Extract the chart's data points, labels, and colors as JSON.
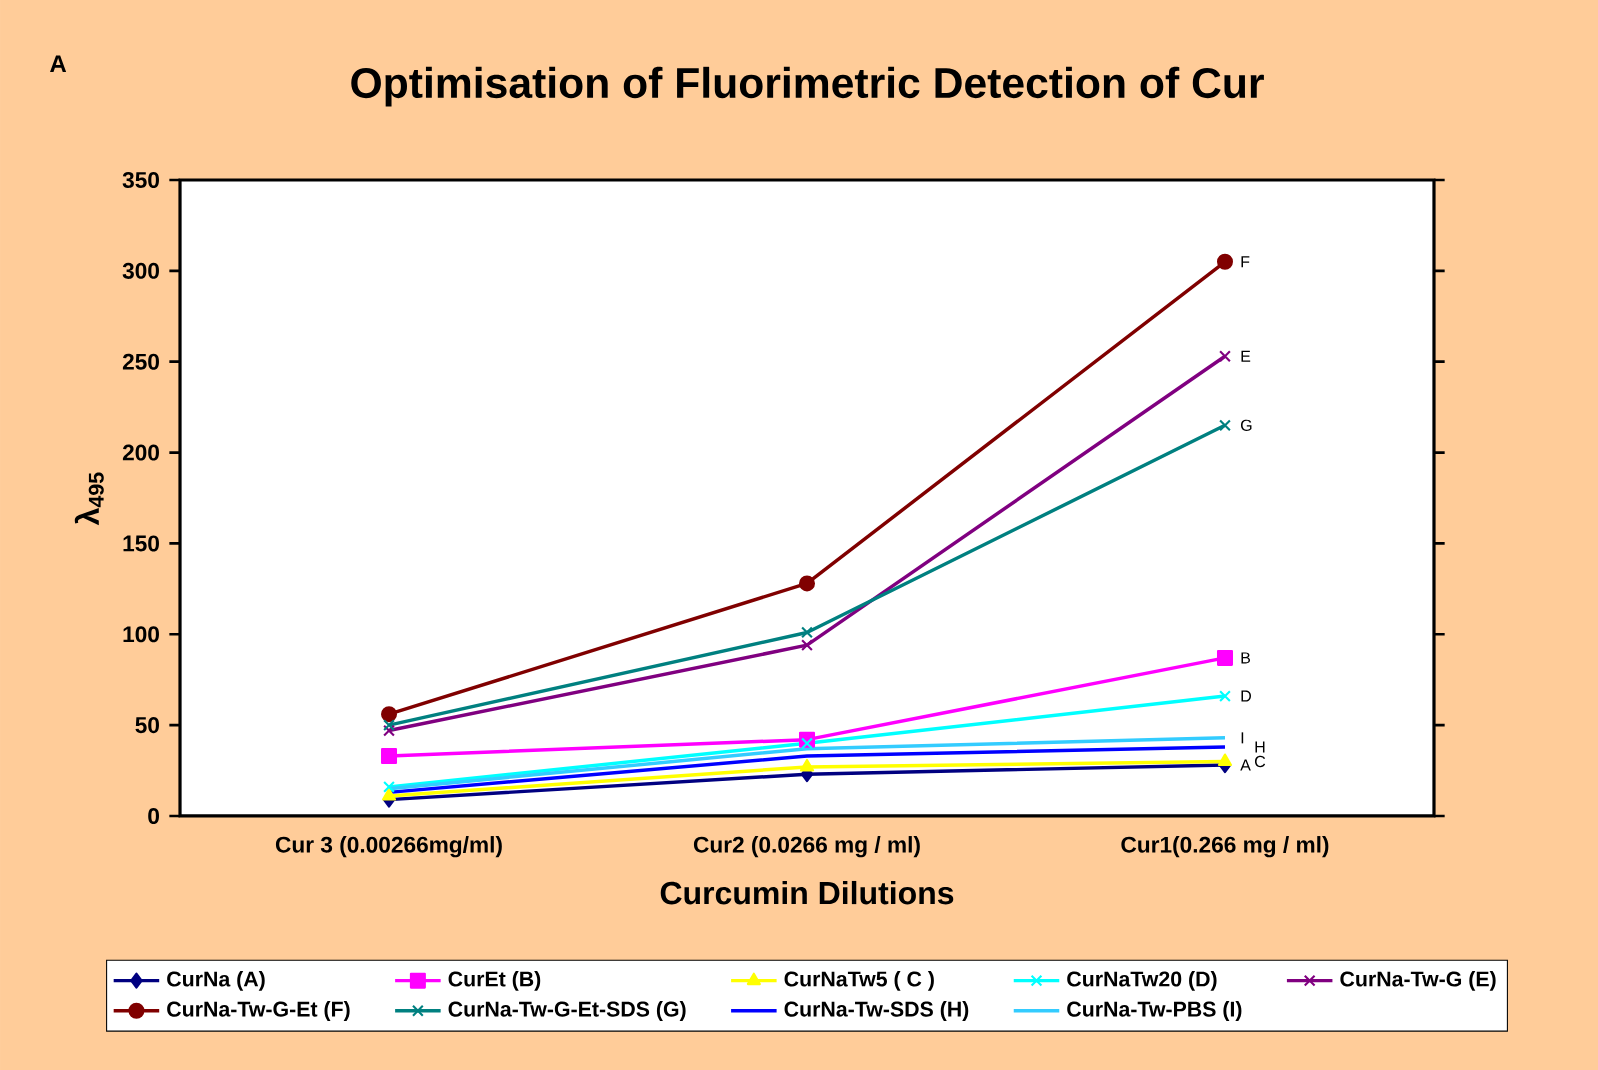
{
  "chart_data": {
    "type": "line",
    "title": "Optimisation of Fluorimetric Detection of Cur",
    "xlabel": "Curcumin Dilutions",
    "ylabel": "λ$_{495}$",
    "categories": [
      "Cur 3 (0.00266mg/ml)",
      "Cur2 (0.0266 mg / ml)",
      "Cur1(0.266 mg / ml)"
    ],
    "ylim": [
      0,
      350
    ],
    "yticks": [
      0,
      50,
      100,
      150,
      200,
      250,
      300,
      350
    ],
    "grid": false,
    "legend": "bottom",
    "line_style": "solid",
    "series": [
      {
        "name": "CurNa (A)",
        "color": "#000080",
        "marker": "diamond",
        "values": [
          9,
          23,
          28
        ]
      },
      {
        "name": "CurEt (B)",
        "color": "#ff00ff",
        "marker": "square",
        "values": [
          33,
          42,
          87
        ]
      },
      {
        "name": "CurNaTw5 ( C )",
        "color": "#ffff00",
        "marker": "triangle",
        "values": [
          11,
          27,
          30
        ]
      },
      {
        "name": "CurNaTw20 (D)",
        "color": "#00ffff",
        "marker": "cross",
        "values": [
          16,
          40,
          66
        ]
      },
      {
        "name": "CurNa-Tw-G (E)",
        "color": "#800080",
        "marker": "cross",
        "values": [
          47,
          94,
          253
        ]
      },
      {
        "name": "CurNa-Tw-G-Et (F)",
        "color": "#800000",
        "marker": "circle",
        "values": [
          56,
          128,
          305
        ]
      },
      {
        "name": "CurNa-Tw-G-Et-SDS (G)",
        "color": "#008080",
        "marker": "cross",
        "values": [
          50,
          101,
          215
        ]
      },
      {
        "name": "CurNa-Tw-SDS (H)",
        "color": "#0000ff",
        "marker": "none",
        "values": [
          13,
          33,
          38
        ]
      },
      {
        "name": "CurNa-Tw-PBS (I)",
        "color": "#33ccff",
        "marker": "none",
        "values": [
          15,
          37,
          43
        ]
      }
    ],
    "annotations": [
      "A",
      {
        "text": "F",
        "x": "Cur1(0.266 mg / ml)",
        "y": 305
      },
      {
        "text": "E",
        "x": "Cur1(0.266 mg / ml)",
        "y": 253
      },
      {
        "text": "G",
        "x": "Cur1(0.266 mg / ml)",
        "y": 215
      },
      {
        "text": "B",
        "x": "Cur1(0.266 mg / ml)",
        "y": 87
      },
      {
        "text": "D",
        "x": "Cur1(0.266 mg / ml)",
        "y": 66
      },
      {
        "text": "I",
        "x": "Cur1(0.266 mg / ml)",
        "y": 43
      },
      {
        "text": "A",
        "x": "Cur1(0.266 mg / ml)",
        "y": 28
      },
      {
        "text": "C",
        "x": "Cur1(0.266 mg / ml)",
        "y": 30
      },
      {
        "text": "H",
        "x": "Cur1(0.266 mg / ml)",
        "y": 38
      }
    ]
  }
}
